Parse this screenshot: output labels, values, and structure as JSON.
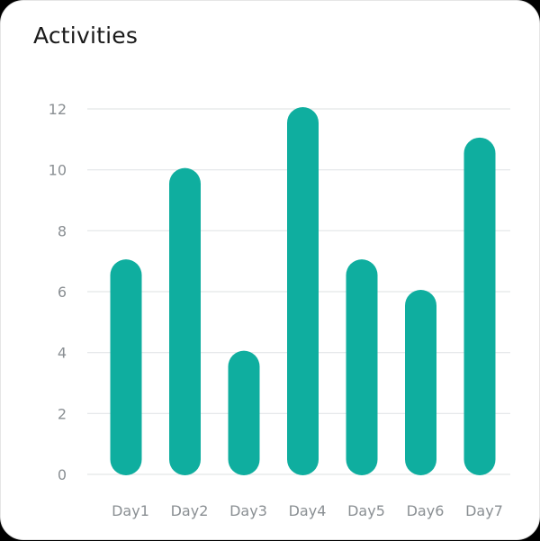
{
  "card": {
    "title": "Activities"
  },
  "colors": {
    "bar": "#0fae9f",
    "grid": "#e3e6e8",
    "tick_text": "#8a8f93",
    "title_text": "#1a1a1a"
  },
  "chart_data": {
    "type": "bar",
    "title": "Activities",
    "xlabel": "",
    "ylabel": "",
    "categories": [
      "Day1",
      "Day2",
      "Day3",
      "Day4",
      "Day5",
      "Day6",
      "Day7"
    ],
    "values": [
      7,
      10,
      4,
      12,
      7,
      6,
      11
    ],
    "ylim": [
      0,
      12
    ],
    "yticks": [
      0,
      2,
      4,
      6,
      8,
      10,
      12
    ],
    "grid": true,
    "bar_style": "rounded"
  }
}
